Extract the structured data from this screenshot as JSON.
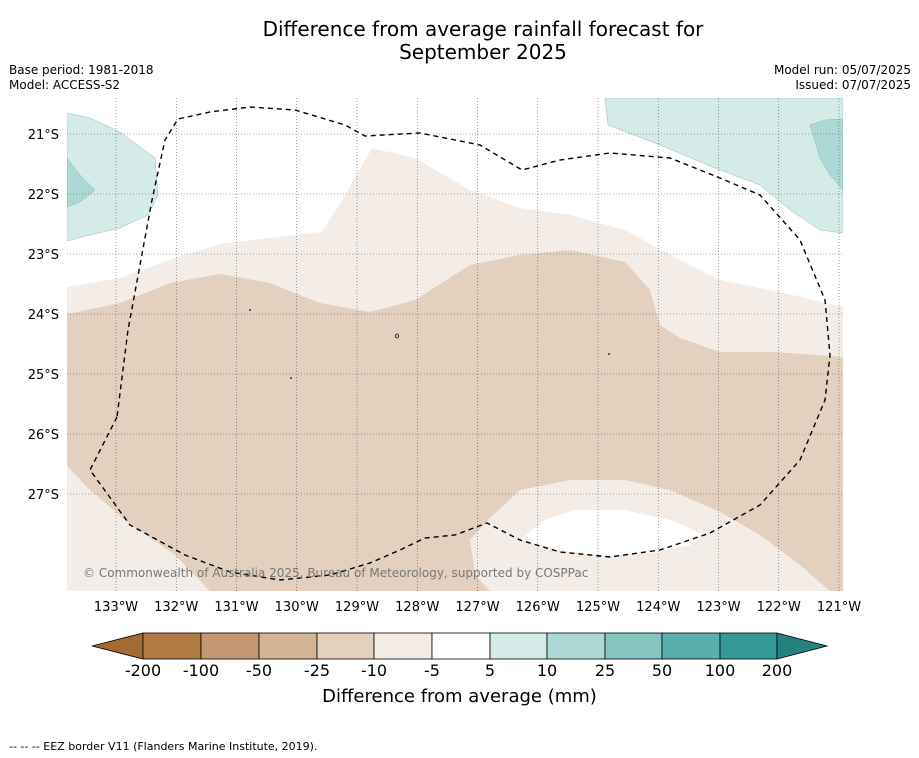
{
  "title_line1": "Difference from average rainfall forecast for",
  "title_line2": "September 2025",
  "base_period": "Base period: 1981-2018",
  "model": "Model: ACCESS-S2",
  "model_run": "Model run: 05/07/2025",
  "issued": "Issued: 07/07/2025",
  "copyright": "© Commonwealth of Australia 2025, Bureau of Meteorology, supported by COSPPac",
  "lat_labels": [
    "21°S",
    "22°S",
    "23°S",
    "24°S",
    "25°S",
    "26°S",
    "27°S"
  ],
  "lon_labels": [
    "133°W",
    "132°W",
    "131°W",
    "130°W",
    "129°W",
    "128°W",
    "127°W",
    "126°W",
    "125°W",
    "124°W",
    "123°W",
    "122°W",
    "121°W"
  ],
  "colorbar": {
    "label": "Difference from average (mm)",
    "ticks": [
      "-200",
      "-100",
      "-50",
      "-25",
      "-10",
      "-5",
      "5",
      "10",
      "25",
      "50",
      "100",
      "200"
    ],
    "colors": [
      "#a16b33",
      "#b07a42",
      "#c39870",
      "#d5b494",
      "#e3d0bf",
      "#f4ede7",
      "#ffffff",
      "#d5ebe8",
      "#acd8d5",
      "#84c4c1",
      "#5aafad",
      "#339a99",
      "#23817f"
    ]
  },
  "footnote": "--  --  -- EEZ border V11 (Flanders Marine Institute, 2019).",
  "colors": {
    "light_tan": "#f4ede7",
    "tan": "#e3d0bf",
    "light_teal": "#d5ebe8",
    "teal": "#acd8d5",
    "grid": "#555555"
  }
}
